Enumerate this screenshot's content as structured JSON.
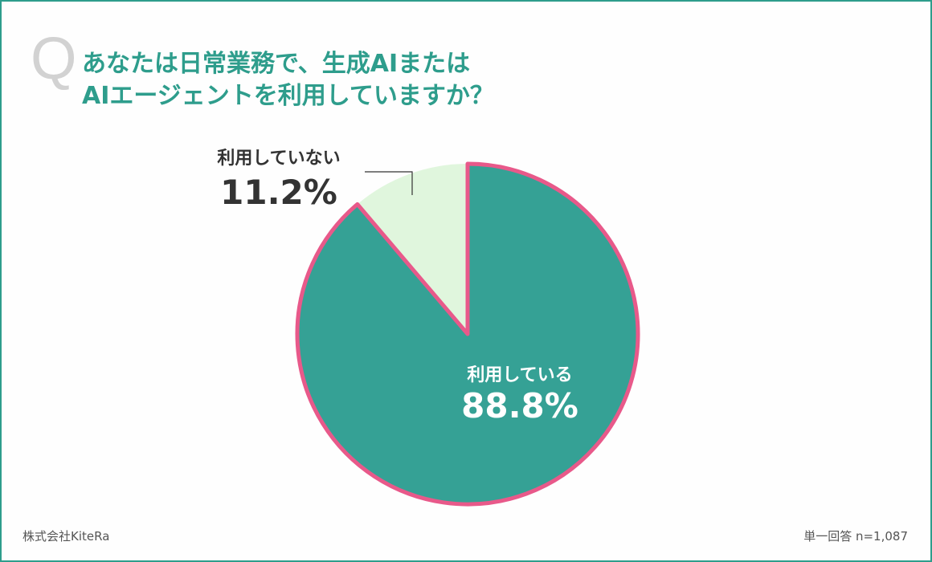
{
  "question_mark": "Q",
  "title_lines": [
    "あなたは日常業務で、生成AIまたは",
    "AIエージェントを利用していますか？"
  ],
  "chart_data": {
    "type": "pie",
    "start_angle_deg": 0,
    "direction": "clockwise",
    "slices": [
      {
        "label": "利用している",
        "value": 88.8,
        "value_text": "88.8%",
        "color": "#35a195",
        "stroke": "#e8598a",
        "highlighted": true
      },
      {
        "label": "利用していない",
        "value": 11.2,
        "value_text": "11.2%",
        "color": "#e0f6dd",
        "stroke": null,
        "highlighted": false
      }
    ],
    "label_placement": {
      "利用している": "inside",
      "利用していない": "outside-left"
    }
  },
  "footer": {
    "source": "株式会社KiteRa",
    "note": "単一回答 n=1,087"
  }
}
